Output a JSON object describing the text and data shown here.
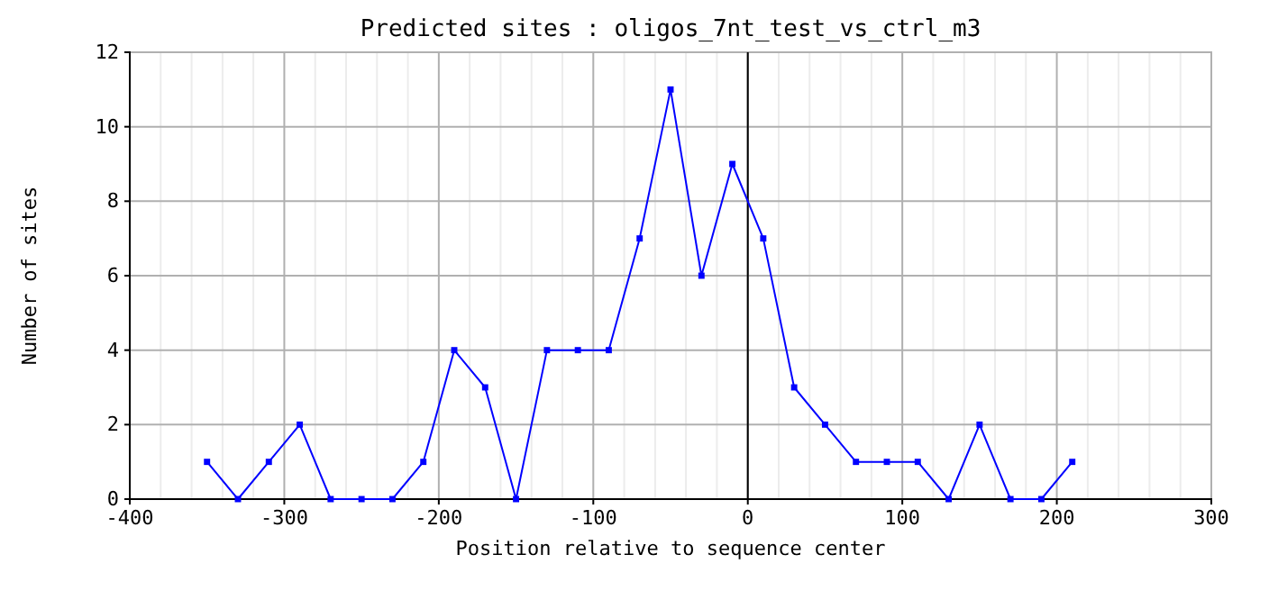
{
  "chart_data": {
    "type": "line",
    "title": "Predicted sites : oligos_7nt_test_vs_ctrl_m3",
    "xlabel": "Position relative to sequence center",
    "ylabel": "Number of sites",
    "x": [
      -350,
      -330,
      -310,
      -290,
      -270,
      -250,
      -230,
      -210,
      -190,
      -170,
      -150,
      -130,
      -110,
      -90,
      -70,
      -50,
      -30,
      -10,
      10,
      30,
      50,
      70,
      90,
      110,
      130,
      150,
      170,
      190,
      210
    ],
    "series": [
      {
        "color": "#0000ff",
        "values": [
          1,
          0,
          1,
          2,
          0,
          0,
          0,
          1,
          4,
          3,
          0,
          4,
          4,
          4,
          7,
          11,
          6,
          9,
          7,
          3,
          2,
          1,
          1,
          1,
          0,
          2,
          0,
          0,
          1
        ]
      }
    ],
    "xlim": [
      -400,
      300
    ],
    "ylim": [
      0,
      12
    ],
    "xticks": [
      -400,
      {
        "value": -380,
        "label": null
      },
      {
        "value": -360,
        "label": null
      },
      {
        "value": -340,
        "label": null
      },
      {
        "value": -320,
        "label": null
      },
      -300,
      {
        "value": -280,
        "label": null
      },
      {
        "value": -260,
        "label": null
      },
      {
        "value": -240,
        "label": null
      },
      {
        "value": -220,
        "label": null
      },
      -200,
      {
        "value": -180,
        "label": null
      },
      {
        "value": -160,
        "label": null
      },
      {
        "value": -140,
        "label": null
      },
      {
        "value": -120,
        "label": null
      },
      -100,
      {
        "value": -80,
        "label": null
      },
      {
        "value": -60,
        "label": null
      },
      {
        "value": -40,
        "label": null
      },
      {
        "value": -20,
        "label": null
      },
      0,
      {
        "value": 20,
        "label": null
      },
      {
        "value": 40,
        "label": null
      },
      {
        "value": 60,
        "label": null
      },
      {
        "value": 80,
        "label": null
      },
      100,
      {
        "value": 120,
        "label": null
      },
      {
        "value": 140,
        "label": null
      },
      {
        "value": 160,
        "label": null
      },
      {
        "value": 180,
        "label": null
      },
      200,
      {
        "value": 220,
        "label": null
      },
      {
        "value": 240,
        "label": null
      },
      {
        "value": 260,
        "label": null
      },
      {
        "value": 280,
        "label": null
      },
      300
    ],
    "yticks": [
      0,
      2,
      4,
      6,
      8,
      10,
      12
    ],
    "grid": true,
    "marker": "square",
    "line_style": "solid",
    "ref_lines": [
      {
        "axis": "x",
        "value": 0,
        "color": "#000000"
      }
    ]
  }
}
